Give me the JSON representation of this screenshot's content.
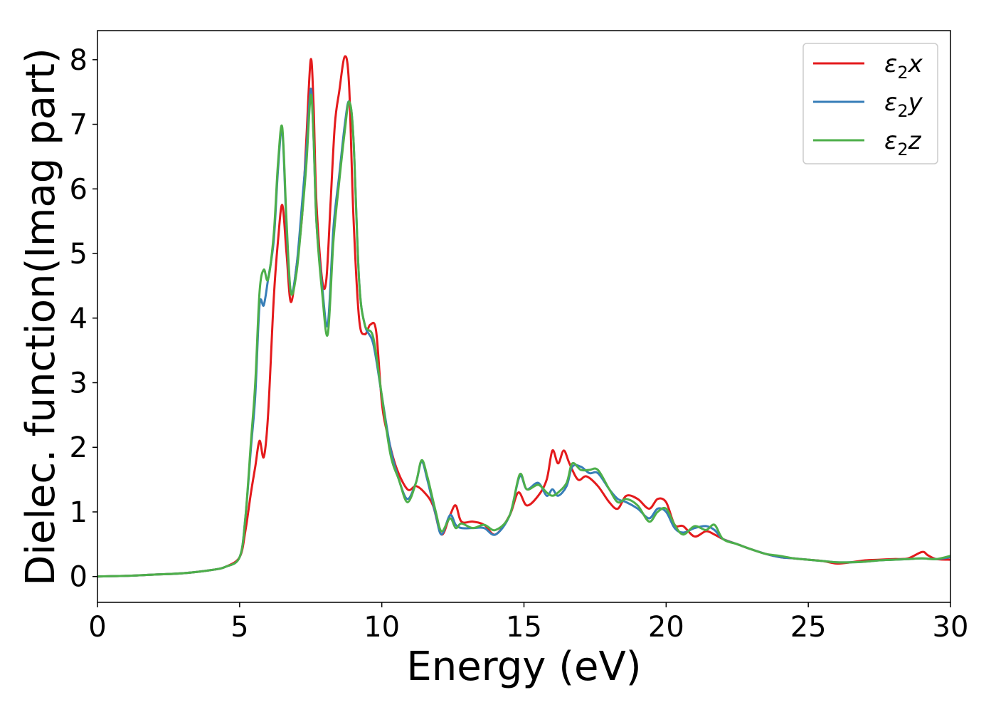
{
  "chart_data": {
    "type": "line",
    "xlabel": "Energy (eV)",
    "ylabel": "Dielec. function(Imag part)",
    "xlim": [
      0,
      30
    ],
    "ylim": [
      -0.4,
      8.45
    ],
    "xticks": [
      0,
      5,
      10,
      15,
      20,
      25,
      30
    ],
    "yticks": [
      0,
      1,
      2,
      3,
      4,
      5,
      6,
      7,
      8
    ],
    "grid": false,
    "legend_position": "top-right",
    "series": [
      {
        "name": "ε₂x",
        "legend_base": "ε",
        "legend_sub": "2",
        "legend_suffix": "x",
        "color": "#e41a1c",
        "x": [
          0,
          1,
          2,
          3,
          4,
          4.5,
          5.0,
          5.2,
          5.4,
          5.55,
          5.7,
          5.85,
          6.0,
          6.2,
          6.35,
          6.5,
          6.65,
          6.8,
          7.0,
          7.2,
          7.35,
          7.5,
          7.6,
          7.7,
          7.9,
          8.05,
          8.2,
          8.35,
          8.5,
          8.7,
          8.85,
          9.0,
          9.2,
          9.4,
          9.6,
          9.8,
          10.0,
          10.2,
          10.5,
          10.9,
          11.2,
          11.5,
          11.8,
          12.1,
          12.4,
          12.6,
          12.8,
          13.2,
          13.6,
          14.0,
          14.5,
          14.8,
          15.1,
          15.5,
          15.8,
          16.0,
          16.2,
          16.4,
          16.6,
          16.9,
          17.2,
          17.6,
          18.0,
          18.3,
          18.6,
          19.0,
          19.4,
          19.7,
          20.0,
          20.3,
          20.6,
          21.0,
          21.4,
          21.7,
          22.0,
          22.5,
          23.0,
          23.5,
          24.0,
          24.5,
          25.0,
          25.5,
          26.0,
          26.5,
          27.0,
          27.5,
          28.0,
          28.5,
          29.0,
          29.2,
          29.5,
          30.0
        ],
        "y": [
          0.0,
          0.01,
          0.03,
          0.05,
          0.1,
          0.15,
          0.3,
          0.7,
          1.3,
          1.7,
          2.1,
          1.85,
          2.5,
          4.3,
          5.2,
          5.75,
          5.0,
          4.25,
          4.8,
          5.6,
          6.8,
          8.0,
          7.3,
          5.8,
          4.6,
          4.6,
          5.8,
          7.0,
          7.5,
          8.05,
          7.6,
          5.6,
          4.0,
          3.75,
          3.9,
          3.8,
          2.7,
          2.2,
          1.7,
          1.35,
          1.4,
          1.3,
          1.1,
          0.65,
          0.95,
          1.1,
          0.85,
          0.85,
          0.8,
          0.65,
          0.95,
          1.3,
          1.1,
          1.25,
          1.5,
          1.95,
          1.75,
          1.95,
          1.75,
          1.5,
          1.55,
          1.4,
          1.15,
          1.05,
          1.25,
          1.2,
          1.05,
          1.2,
          1.15,
          0.8,
          0.78,
          0.62,
          0.7,
          0.65,
          0.58,
          0.5,
          0.42,
          0.35,
          0.3,
          0.28,
          0.26,
          0.24,
          0.2,
          0.22,
          0.25,
          0.26,
          0.27,
          0.28,
          0.38,
          0.33,
          0.27,
          0.26
        ]
      },
      {
        "name": "ε₂y",
        "legend_base": "ε",
        "legend_sub": "2",
        "legend_suffix": "y",
        "color": "#377eb8",
        "x": [
          0,
          1,
          2,
          3,
          4,
          4.5,
          5.0,
          5.2,
          5.4,
          5.55,
          5.7,
          5.85,
          6.0,
          6.2,
          6.35,
          6.5,
          6.65,
          6.8,
          7.0,
          7.2,
          7.35,
          7.5,
          7.6,
          7.7,
          7.9,
          8.1,
          8.3,
          8.5,
          8.7,
          8.85,
          9.0,
          9.2,
          9.4,
          9.7,
          10.0,
          10.3,
          10.6,
          10.9,
          11.2,
          11.4,
          11.6,
          11.9,
          12.1,
          12.4,
          12.6,
          12.8,
          13.2,
          13.6,
          14.0,
          14.5,
          14.85,
          15.1,
          15.5,
          15.8,
          16.0,
          16.2,
          16.5,
          16.7,
          17.0,
          17.3,
          17.6,
          18.0,
          18.3,
          18.6,
          19.0,
          19.4,
          19.7,
          20.0,
          20.3,
          20.6,
          21.0,
          21.4,
          21.7,
          22.0,
          22.5,
          23.0,
          23.5,
          24.0,
          24.5,
          25.0,
          25.5,
          26.0,
          26.5,
          27.0,
          27.5,
          28.0,
          28.5,
          29.0,
          29.5,
          30.0
        ],
        "y": [
          0.0,
          0.01,
          0.03,
          0.05,
          0.1,
          0.15,
          0.3,
          0.9,
          2.0,
          2.8,
          4.2,
          4.2,
          4.6,
          5.2,
          6.3,
          6.9,
          5.4,
          4.4,
          4.8,
          5.8,
          6.6,
          7.55,
          6.8,
          5.5,
          4.5,
          3.9,
          5.4,
          6.2,
          7.0,
          7.35,
          6.8,
          4.6,
          3.9,
          3.6,
          2.8,
          2.0,
          1.5,
          1.2,
          1.45,
          1.78,
          1.5,
          0.95,
          0.65,
          0.95,
          0.8,
          0.75,
          0.75,
          0.75,
          0.65,
          0.95,
          1.55,
          1.35,
          1.45,
          1.25,
          1.35,
          1.25,
          1.4,
          1.7,
          1.7,
          1.6,
          1.6,
          1.35,
          1.2,
          1.15,
          1.05,
          0.9,
          1.05,
          1.0,
          0.75,
          0.68,
          0.75,
          0.78,
          0.72,
          0.58,
          0.5,
          0.42,
          0.35,
          0.3,
          0.28,
          0.26,
          0.24,
          0.22,
          0.22,
          0.23,
          0.25,
          0.26,
          0.27,
          0.28,
          0.27,
          0.3
        ]
      },
      {
        "name": "ε₂z",
        "legend_base": "ε",
        "legend_sub": "2",
        "legend_suffix": "z",
        "color": "#4daf4a",
        "x": [
          0,
          1,
          2,
          3,
          4,
          4.5,
          5.0,
          5.2,
          5.4,
          5.55,
          5.7,
          5.85,
          6.0,
          6.2,
          6.35,
          6.5,
          6.65,
          6.8,
          7.0,
          7.2,
          7.35,
          7.5,
          7.6,
          7.7,
          7.9,
          8.1,
          8.3,
          8.5,
          8.7,
          8.85,
          9.0,
          9.2,
          9.4,
          9.7,
          10.0,
          10.3,
          10.6,
          10.9,
          11.2,
          11.4,
          11.6,
          11.9,
          12.1,
          12.4,
          12.6,
          12.8,
          13.2,
          13.6,
          14.0,
          14.5,
          14.85,
          15.1,
          15.5,
          15.8,
          16.0,
          16.2,
          16.5,
          16.7,
          17.0,
          17.3,
          17.6,
          18.0,
          18.3,
          18.6,
          19.0,
          19.4,
          19.7,
          20.0,
          20.3,
          20.6,
          21.0,
          21.4,
          21.7,
          22.0,
          22.5,
          23.0,
          23.5,
          24.0,
          24.5,
          25.0,
          25.5,
          26.0,
          26.5,
          27.0,
          27.5,
          28.0,
          28.5,
          29.0,
          29.5,
          30.0
        ],
        "y": [
          0.0,
          0.01,
          0.03,
          0.05,
          0.1,
          0.15,
          0.3,
          0.9,
          2.1,
          3.0,
          4.4,
          4.75,
          4.6,
          5.3,
          6.4,
          6.95,
          5.5,
          4.4,
          4.7,
          5.6,
          6.4,
          7.45,
          6.8,
          5.5,
          4.4,
          3.75,
          5.2,
          6.1,
          6.9,
          7.35,
          6.8,
          4.6,
          3.9,
          3.7,
          2.8,
          1.9,
          1.5,
          1.15,
          1.45,
          1.8,
          1.55,
          1.0,
          0.7,
          0.9,
          0.75,
          0.82,
          0.75,
          0.8,
          0.72,
          0.95,
          1.58,
          1.35,
          1.42,
          1.3,
          1.25,
          1.3,
          1.45,
          1.75,
          1.65,
          1.65,
          1.65,
          1.35,
          1.15,
          1.2,
          1.1,
          0.85,
          1.0,
          1.05,
          0.8,
          0.65,
          0.78,
          0.72,
          0.8,
          0.58,
          0.5,
          0.42,
          0.35,
          0.32,
          0.28,
          0.26,
          0.24,
          0.22,
          0.22,
          0.23,
          0.25,
          0.26,
          0.27,
          0.28,
          0.27,
          0.32
        ]
      }
    ]
  }
}
